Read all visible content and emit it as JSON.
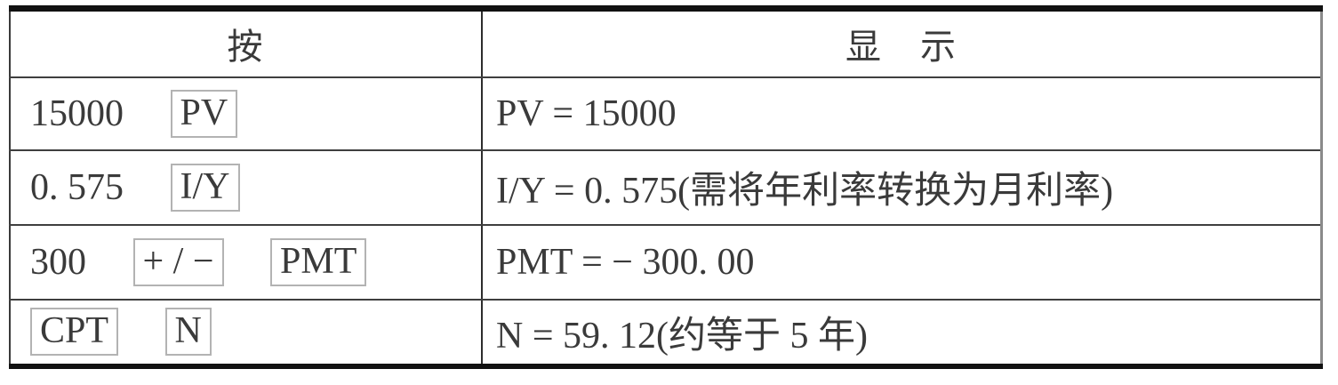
{
  "table": {
    "headers": {
      "press": "按",
      "display": "显　示"
    },
    "rows": [
      {
        "input": "15000",
        "keys": [
          "PV"
        ],
        "display": "PV = 15000"
      },
      {
        "input": "0. 575",
        "keys": [
          "I/Y"
        ],
        "display": "I/Y = 0. 575(需将年利率转换为月利率)"
      },
      {
        "input": "300",
        "keys": [
          "+ / −",
          "PMT"
        ],
        "display": "PMT = − 300. 00"
      },
      {
        "input": "",
        "keys": [
          "CPT",
          "N"
        ],
        "display": "N = 59. 12(约等于 5 年)"
      }
    ]
  },
  "colors": {
    "background": "#ffffff",
    "text": "#3a3a3a",
    "heavy_rule": "#111111",
    "inner_rule": "#3f3f3f",
    "key_border": "#b3b3b3"
  }
}
